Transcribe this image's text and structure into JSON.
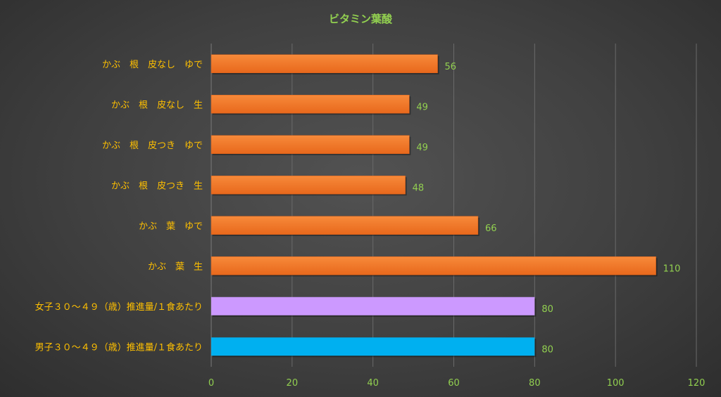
{
  "colors": {
    "title": "#92d050",
    "category_label": "#ffc000",
    "value_label": "#92d050",
    "tick_label": "#92d050",
    "gridline": "#6a6a6a",
    "bar_default": "#f07a26",
    "bar_default_dark": "#d9601a",
    "bar_female": "#cc99ff",
    "bar_male": "#00b0f0"
  },
  "chart_data": {
    "type": "bar",
    "orientation": "horizontal",
    "title": "ビタミン葉酸",
    "xlabel": "",
    "ylabel": "",
    "xlim": [
      0,
      120
    ],
    "x_ticks": [
      0,
      20,
      40,
      60,
      80,
      100,
      120
    ],
    "grid": true,
    "categories": [
      "かぶ　根　皮なし　ゆで",
      "かぶ　根　皮なし　生",
      "かぶ　根　皮つき　ゆで",
      "かぶ　根　皮つき　生",
      "かぶ　葉　ゆで",
      "かぶ　葉　生",
      "女子３０～４９（歳）推進量/１食あたり",
      "男子３０～４９（歳）推進量/１食あたり"
    ],
    "values": [
      56,
      49,
      49,
      48,
      66,
      110,
      80,
      80
    ],
    "bar_colors": [
      "#f07a26",
      "#f07a26",
      "#f07a26",
      "#f07a26",
      "#f07a26",
      "#f07a26",
      "#cc99ff",
      "#00b0f0"
    ]
  }
}
